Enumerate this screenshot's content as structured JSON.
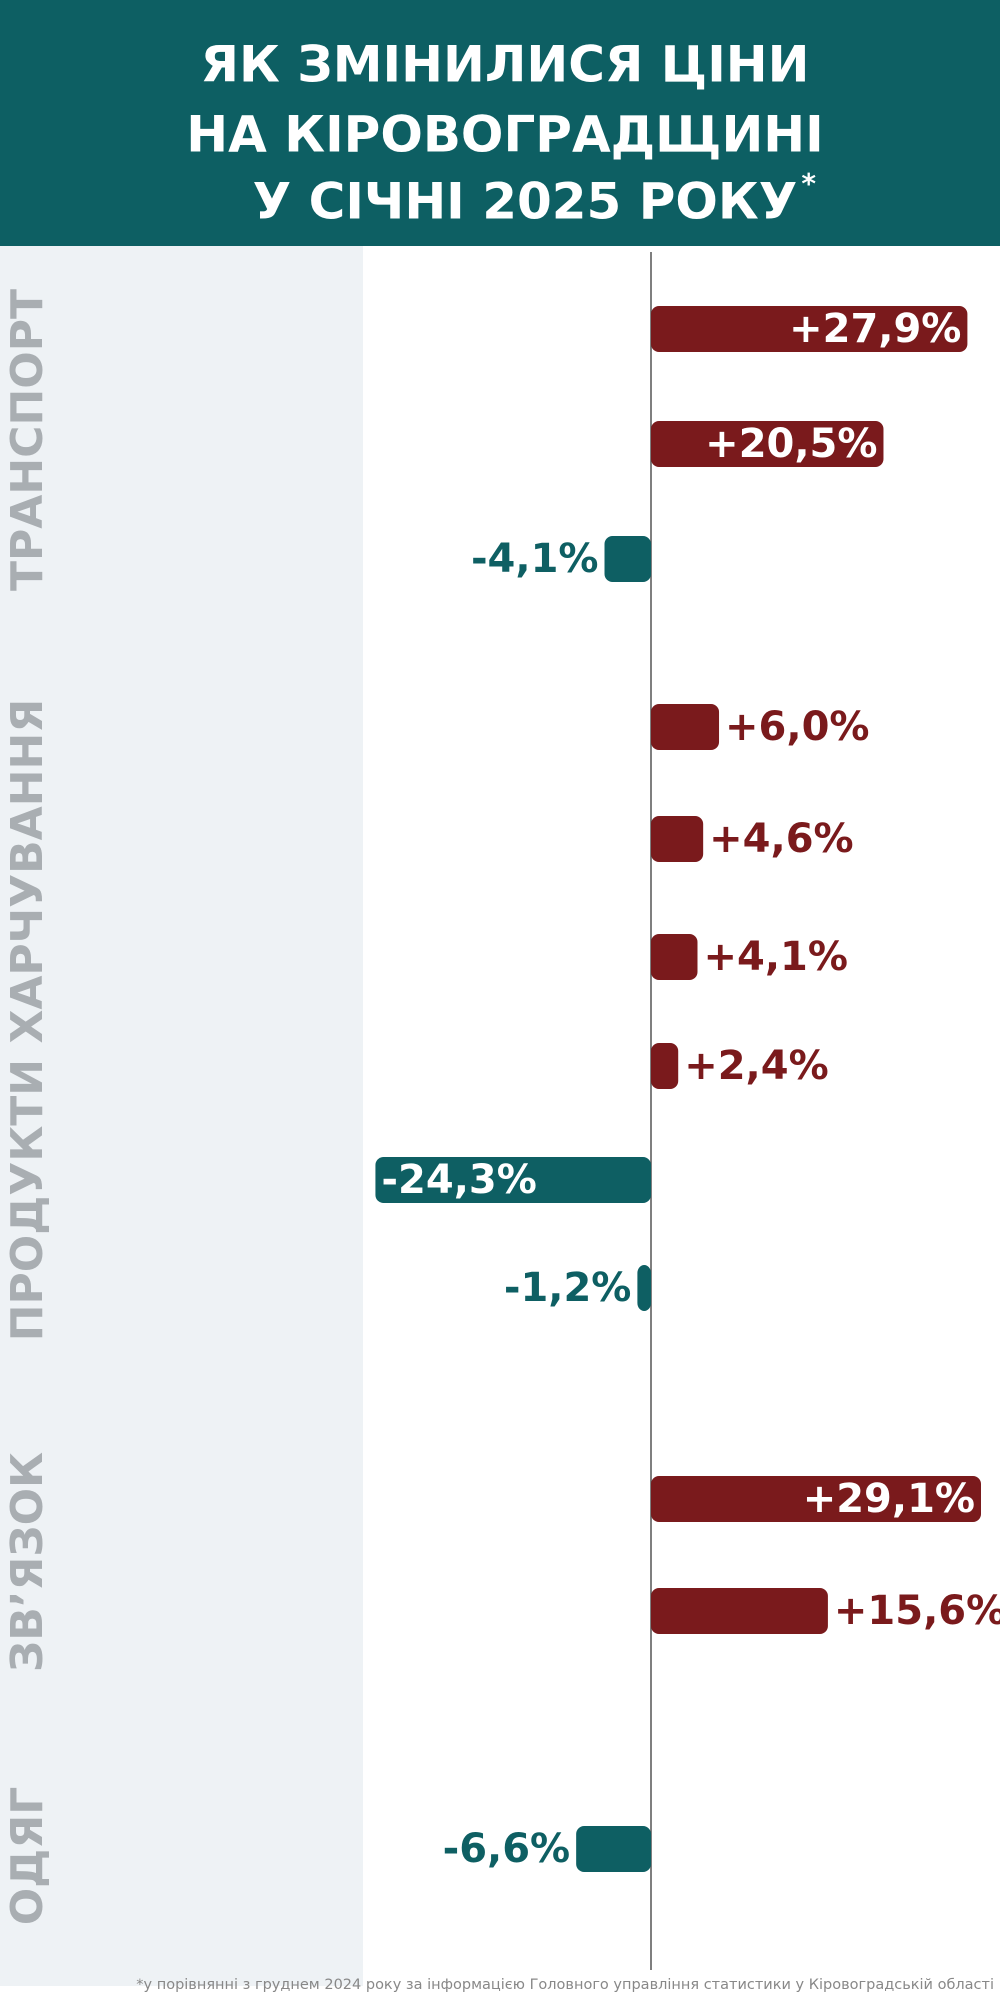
{
  "chart_data": {
    "type": "bar",
    "title_lines": [
      "ЯК ЗМІНИЛИСЯ ЦІНИ",
      "НА КІРОВОГРАДЩИНІ",
      "У СІЧНІ 2025 РОКУ"
    ],
    "title_mark": "*",
    "positive_color": "#7a1a1c",
    "negative_color": "#0e5f63",
    "groups": [
      {
        "label": "ТРАНСПОРТ",
        "values": [
          27.9,
          20.5,
          -4.1
        ],
        "value_labels": [
          "+27,9%",
          "+20,5%",
          "-4,1%"
        ]
      },
      {
        "label": "ПРОДУКТИ ХАРЧУВАННЯ",
        "values": [
          6.0,
          4.6,
          4.1,
          2.4,
          -24.3,
          -1.2
        ],
        "value_labels": [
          "+6,0%",
          "+4,6%",
          "+4,1%",
          "+2,4%",
          "-24,3%",
          "-1,2%"
        ]
      },
      {
        "label": "ЗВ’ЯЗОК",
        "values": [
          29.1,
          15.6
        ],
        "value_labels": [
          "+29,1%",
          "+15,6%"
        ]
      },
      {
        "label": "ОДЯГ",
        "values": [
          -6.6
        ],
        "value_labels": [
          "-6,6%"
        ]
      }
    ],
    "footnote": "*у порівнянні з груднем 2024 року за інформацією Головного управління статистики у Кіровоградській області"
  }
}
